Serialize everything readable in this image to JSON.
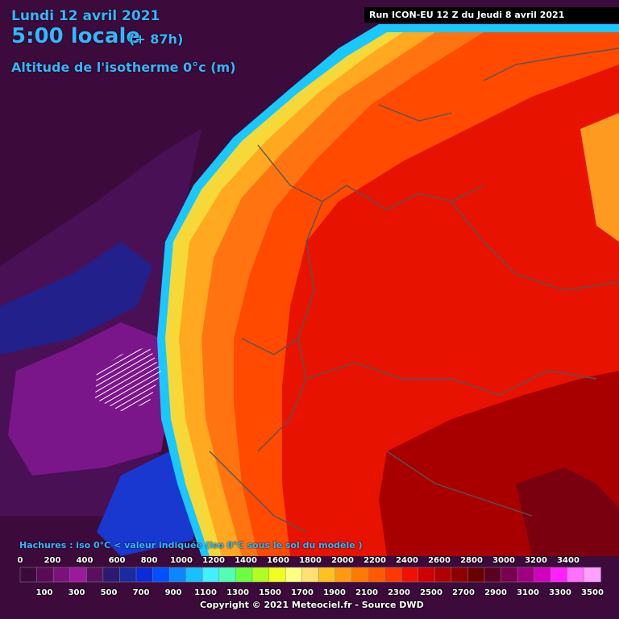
{
  "header": {
    "date": "Lundi 12 avril 2021",
    "time": "5:00 locale",
    "offset": "(+ 87h)",
    "parameter": "Altitude de l'isotherme 0°c (m)",
    "run": "Run ICON-EU 12 Z du Jeudi 8 avril 2021"
  },
  "legend": {
    "hatch_note": "Hachures : iso 0°C < valeur indiquée (iso 0°C sous le sol du modèle )",
    "top_ticks": [
      "0",
      "200",
      "400",
      "600",
      "800",
      "1000",
      "1200",
      "1400",
      "1600",
      "1800",
      "2000",
      "2200",
      "2400",
      "2600",
      "2800",
      "3000",
      "3200",
      "3400"
    ],
    "bottom_ticks": [
      "100",
      "300",
      "500",
      "700",
      "900",
      "1100",
      "1300",
      "1500",
      "1700",
      "1900",
      "2100",
      "2300",
      "2500",
      "2700",
      "2900",
      "3100",
      "3300",
      "3500"
    ],
    "colors": [
      "#3b0a3b",
      "#5a0b55",
      "#7a127a",
      "#9a1a9a",
      "#5a1060",
      "#2b1a70",
      "#1a2aa0",
      "#0a2bd8",
      "#0050ff",
      "#0a86ff",
      "#18c0ff",
      "#40f0ff",
      "#50ffb0",
      "#6cff40",
      "#b0ff20",
      "#f0ff20",
      "#ffff80",
      "#ffe070",
      "#ffc020",
      "#ff9a10",
      "#ff7a00",
      "#ff5a00",
      "#ff3800",
      "#f01000",
      "#d00000",
      "#b00000",
      "#8c0000",
      "#6a0000",
      "#5a0020",
      "#7a0050",
      "#a00080",
      "#d000c0",
      "#ff20ff",
      "#ff70ff",
      "#ffa0ff"
    ],
    "copyright": "Copyright © 2021 Meteociel.fr - Source DWD"
  }
}
